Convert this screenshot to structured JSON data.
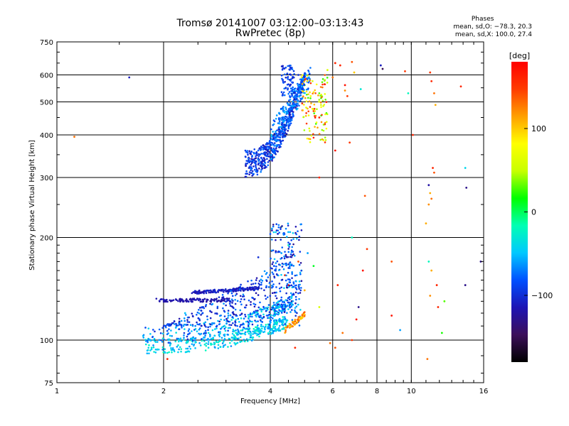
{
  "title": "Tromsø 20141007 03:12:00–03:13:43",
  "subtitle": "RwPretec (8p)",
  "phase_stats": {
    "heading": "Phases",
    "line_o": "mean, sd,O: −78.3, 20.3",
    "line_x": "mean, sd,X: 100.0, 27.4"
  },
  "colorbar": {
    "unit": "[deg]",
    "range": [
      -180,
      180
    ],
    "ticks": [
      {
        "value": 100,
        "label": "100"
      },
      {
        "value": 0,
        "label": "0"
      },
      {
        "value": -100,
        "label": "−100"
      }
    ],
    "colors": [
      "#000000",
      "#3c0f5a",
      "#1e14b4",
      "#0050ff",
      "#00c8ff",
      "#00ffb4",
      "#00ff00",
      "#c8ff00",
      "#ffff00",
      "#ffa000",
      "#ff3c00",
      "#ff0000"
    ]
  },
  "chart_data": {
    "type": "scatter",
    "title": "Tromsø 20141007 03:12:00–03:13:43",
    "subtitle": "RwPretec (8p)",
    "xlabel": "Frequency [MHz]",
    "ylabel": "Stationary phase Virtual Height [km]",
    "xscale": "log",
    "yscale": "log",
    "xlim": [
      1,
      16
    ],
    "ylim": [
      75,
      750
    ],
    "x_ticks": [
      {
        "value": 1,
        "label": "1"
      },
      {
        "value": 2,
        "label": "2"
      },
      {
        "value": 4,
        "label": "4"
      },
      {
        "value": 6,
        "label": "6"
      },
      {
        "value": 8,
        "label": "8"
      },
      {
        "value": 10,
        "label": "10"
      },
      {
        "value": 16,
        "label": "16"
      }
    ],
    "y_ticks": [
      {
        "value": 75,
        "label": "75"
      },
      {
        "value": 100,
        "label": "100"
      },
      {
        "value": 200,
        "label": "200"
      },
      {
        "value": 300,
        "label": "300"
      },
      {
        "value": 400,
        "label": "400"
      },
      {
        "value": 500,
        "label": "500"
      },
      {
        "value": 600,
        "label": "600"
      },
      {
        "value": 750,
        "label": "750"
      }
    ],
    "grid": true,
    "color_by": "phase [deg]",
    "points": [
      [
        1.6,
        590,
        -110
      ],
      [
        1.12,
        395,
        130
      ],
      [
        1.85,
        95,
        -30
      ],
      [
        2.0,
        92,
        20
      ],
      [
        2.05,
        88,
        160
      ],
      [
        2.3,
        120,
        -50
      ],
      [
        2.6,
        112,
        -40
      ],
      [
        3.2,
        105,
        -20
      ],
      [
        3.6,
        140,
        -90
      ],
      [
        3.7,
        175,
        -100
      ],
      [
        3.9,
        150,
        -70
      ],
      [
        4.1,
        165,
        -85
      ],
      [
        4.3,
        180,
        -60
      ],
      [
        4.5,
        190,
        -20
      ],
      [
        4.3,
        215,
        40
      ],
      [
        4.2,
        205,
        -110
      ],
      [
        4.4,
        155,
        160
      ],
      [
        4.6,
        130,
        -130
      ],
      [
        4.8,
        170,
        140
      ],
      [
        4.5,
        145,
        170
      ],
      [
        4.4,
        125,
        -20
      ],
      [
        4.9,
        160,
        -30
      ],
      [
        5.1,
        180,
        -60
      ],
      [
        5.3,
        165,
        10
      ],
      [
        5.0,
        140,
        110
      ],
      [
        5.5,
        125,
        60
      ],
      [
        4.7,
        95,
        160
      ],
      [
        5.9,
        98,
        130
      ],
      [
        6.1,
        95,
        140
      ],
      [
        6.2,
        145,
        160
      ],
      [
        6.4,
        105,
        130
      ],
      [
        6.8,
        100,
        150
      ],
      [
        7.0,
        115,
        170
      ],
      [
        7.1,
        125,
        -130
      ],
      [
        7.3,
        160,
        170
      ],
      [
        7.5,
        185,
        150
      ],
      [
        6.8,
        200,
        -20
      ],
      [
        9.3,
        107,
        -60
      ],
      [
        8.8,
        118,
        170
      ],
      [
        11.2,
        170,
        -20
      ],
      [
        11.0,
        220,
        110
      ],
      [
        11.4,
        160,
        110
      ],
      [
        11.8,
        145,
        160
      ],
      [
        11.9,
        125,
        160
      ],
      [
        11.1,
        88,
        130
      ],
      [
        11.3,
        135,
        120
      ],
      [
        14.2,
        145,
        -130
      ],
      [
        15.7,
        170,
        -130
      ],
      [
        12.2,
        105,
        20
      ],
      [
        12.4,
        130,
        30
      ],
      [
        4.6,
        630,
        -90
      ],
      [
        4.8,
        600,
        -100
      ],
      [
        5.0,
        560,
        20
      ],
      [
        5.2,
        520,
        80
      ],
      [
        5.3,
        470,
        150
      ],
      [
        5.5,
        450,
        160
      ],
      [
        5.7,
        430,
        170
      ],
      [
        5.8,
        620,
        60
      ],
      [
        6.0,
        590,
        130
      ],
      [
        6.3,
        640,
        160
      ],
      [
        6.5,
        560,
        170
      ],
      [
        6.6,
        520,
        150
      ],
      [
        6.9,
        610,
        100
      ],
      [
        7.2,
        545,
        -30
      ],
      [
        6.7,
        380,
        150
      ],
      [
        6.1,
        360,
        170
      ],
      [
        5.5,
        300,
        160
      ],
      [
        7.4,
        265,
        140
      ],
      [
        6.5,
        540,
        120
      ],
      [
        8.2,
        640,
        -110
      ],
      [
        8.3,
        625,
        -150
      ],
      [
        9.6,
        615,
        150
      ],
      [
        9.8,
        530,
        -20
      ],
      [
        10.1,
        400,
        160
      ],
      [
        11.3,
        610,
        150
      ],
      [
        11.4,
        575,
        160
      ],
      [
        11.6,
        530,
        130
      ],
      [
        11.7,
        490,
        110
      ],
      [
        11.5,
        320,
        160
      ],
      [
        11.6,
        310,
        140
      ],
      [
        11.2,
        285,
        -120
      ],
      [
        11.3,
        270,
        110
      ],
      [
        11.4,
        260,
        130
      ],
      [
        11.2,
        250,
        120
      ],
      [
        13.8,
        555,
        160
      ],
      [
        14.2,
        320,
        -40
      ],
      [
        14.3,
        280,
        -130
      ],
      [
        8.8,
        170,
        140
      ],
      [
        6.8,
        655,
        140
      ],
      [
        6.1,
        650,
        160
      ]
    ]
  }
}
